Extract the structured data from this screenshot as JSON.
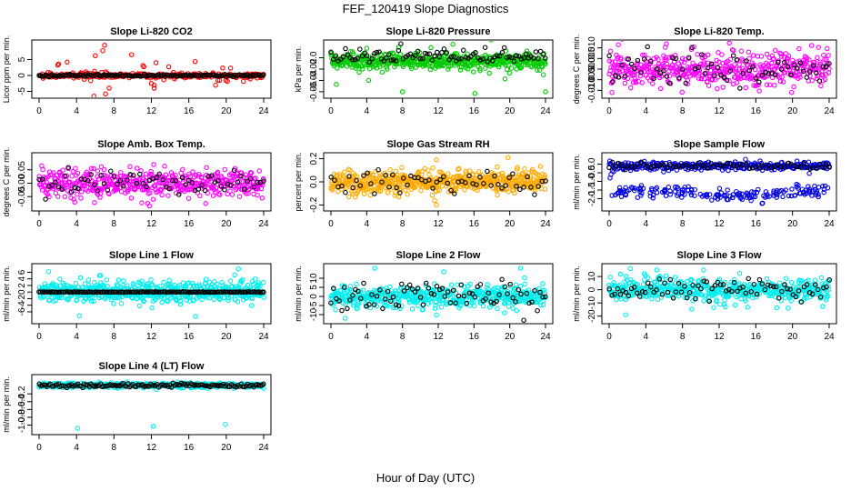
{
  "figure": {
    "title": "FEF_120419  Slope Diagnostics",
    "xlabel": "Hour of Day (UTC)"
  },
  "chart_data": [
    {
      "id": "p1",
      "type": "scatter",
      "title": "Slope Li-820 CO2",
      "ylabel": "Licor ppm per min.",
      "xlim": [
        0,
        24
      ],
      "ylim": [
        -6,
        10
      ],
      "xticks": [
        "0",
        "4",
        "8",
        "12",
        "16",
        "20",
        "24"
      ],
      "yticks": [
        {
          "v": -5,
          "label": "-5"
        },
        {
          "v": 0,
          "label": "0"
        },
        {
          "v": 5,
          "label": "5"
        }
      ],
      "color": "#ff0000",
      "gen": {
        "n": 280,
        "center": 0,
        "spread": 0.4,
        "tail": 0.12,
        "tailSpread": 3
      },
      "black": {
        "n": 140,
        "center": 0,
        "spread": 0.15
      },
      "outliers": [
        {
          "x": 7.1,
          "y": -5.8
        },
        {
          "x": 7.0,
          "y": 9.5
        },
        {
          "x": 6.8,
          "y": 7.8
        },
        {
          "x": 6.0,
          "y": 6.2
        },
        {
          "x": 12.3,
          "y": -4.0
        },
        {
          "x": 12.0,
          "y": -2.5
        },
        {
          "x": 12.5,
          "y": 4.0
        },
        {
          "x": 3.0,
          "y": 4.2
        }
      ]
    },
    {
      "id": "p2",
      "type": "scatter",
      "title": "Slope Li-820 Pressure",
      "ylabel": "kPa per min.",
      "xlim": [
        0,
        24
      ],
      "ylim": [
        -0.065,
        0.025
      ],
      "xticks": [
        "0",
        "4",
        "8",
        "12",
        "16",
        "20",
        "24"
      ],
      "yticks": [
        {
          "v": -0.06,
          "label": "-0.06"
        },
        {
          "v": -0.04,
          "label": "-0.04"
        },
        {
          "v": -0.02,
          "label": "-0.02"
        },
        {
          "v": 0,
          "label": "0.0"
        }
      ],
      "color": "#00cc00",
      "gen": {
        "n": 520,
        "center": -0.006,
        "spread": 0.007,
        "tail": 0.05,
        "tailSpread": 0.015
      },
      "black": {
        "n": 90,
        "center": 0.002,
        "spread": 0.006
      },
      "outliers": [
        {
          "x": 8.0,
          "y": -0.06
        },
        {
          "x": 16.1,
          "y": -0.063
        },
        {
          "x": 24.0,
          "y": -0.06
        },
        {
          "x": 0.6,
          "y": -0.047
        },
        {
          "x": 4.2,
          "y": -0.04
        }
      ]
    },
    {
      "id": "p3",
      "type": "scatter",
      "title": "Slope Li-820 Temp.",
      "ylabel": "degrees C per min.",
      "xlim": [
        0,
        24
      ],
      "ylim": [
        -0.012,
        0.012
      ],
      "xticks": [
        "0",
        "4",
        "8",
        "12",
        "16",
        "20",
        "24"
      ],
      "yticks": [
        {
          "v": -0.01,
          "label": "-0.010"
        },
        {
          "v": -0.005,
          "label": "-0.005"
        },
        {
          "v": 0,
          "label": "0.000"
        },
        {
          "v": 0.005,
          "label": "0.005"
        },
        {
          "v": 0.01,
          "label": "0.010"
        }
      ],
      "color": "#ff00ff",
      "gen": {
        "n": 480,
        "center": 0.0,
        "spread": 0.004,
        "tail": 0.05,
        "tailSpread": 0.004
      },
      "black": {
        "n": 70,
        "center": 0,
        "spread": 0.004
      },
      "outliers": [
        {
          "x": 1.0,
          "y": 0.0115
        },
        {
          "x": 0.3,
          "y": -0.011
        },
        {
          "x": 19.9,
          "y": -0.011
        }
      ]
    },
    {
      "id": "p4",
      "type": "scatter",
      "title": "Slope Amb. Box Temp.",
      "ylabel": "degrees C per min.",
      "xlim": [
        0,
        24
      ],
      "ylim": [
        -0.09,
        0.1
      ],
      "xticks": [
        "0",
        "4",
        "8",
        "12",
        "16",
        "20",
        "24"
      ],
      "yticks": [
        {
          "v": -0.05,
          "label": "-0.05"
        },
        {
          "v": 0,
          "label": "0.00"
        },
        {
          "v": 0.05,
          "label": "0.05"
        }
      ],
      "color": "#ff00ff",
      "gen": {
        "n": 480,
        "center": 0.0,
        "spread": 0.025,
        "tail": 0.05,
        "tailSpread": 0.03
      },
      "black": {
        "n": 70,
        "center": 0,
        "spread": 0.025
      },
      "outliers": [
        {
          "x": 11.8,
          "y": -0.085
        },
        {
          "x": 11.6,
          "y": -0.075
        }
      ]
    },
    {
      "id": "p5",
      "type": "scatter",
      "title": "Slope Gas Stream RH",
      "ylabel": "percent per min.",
      "xlim": [
        0,
        24
      ],
      "ylim": [
        -0.22,
        0.22
      ],
      "xticks": [
        "0",
        "4",
        "8",
        "12",
        "16",
        "20",
        "24"
      ],
      "yticks": [
        {
          "v": -0.2,
          "label": "-0.2"
        },
        {
          "v": 0,
          "label": "0.0"
        },
        {
          "v": 0.2,
          "label": "0.2"
        }
      ],
      "color": "#ffaa00",
      "gen": {
        "n": 540,
        "center": 0,
        "spread": 0.045,
        "tail": 0.04,
        "tailSpread": 0.06
      },
      "black": {
        "n": 60,
        "center": 0,
        "spread": 0.05
      },
      "outliers": [
        {
          "x": 7.6,
          "y": -0.13
        },
        {
          "x": 11.8,
          "y": -0.2
        },
        {
          "x": 11.6,
          "y": -0.16
        },
        {
          "x": 11.8,
          "y": 0.19
        },
        {
          "x": 19.8,
          "y": 0.21
        },
        {
          "x": 18.6,
          "y": 0.13
        },
        {
          "x": 2.0,
          "y": -0.13
        }
      ]
    },
    {
      "id": "p6",
      "type": "scatter",
      "title": "Slope Sample Flow",
      "ylabel": "ml/min per min.",
      "xlim": [
        0,
        24
      ],
      "ylim": [
        -2.5,
        0.45
      ],
      "xticks": [
        "0",
        "4",
        "8",
        "12",
        "16",
        "20",
        "24"
      ],
      "yticks": [
        {
          "v": -2.0,
          "label": "-2.0"
        },
        {
          "v": -1.5,
          "label": "-1.5"
        },
        {
          "v": -1.0,
          "label": "-1.0"
        },
        {
          "v": -0.5,
          "label": "-0.5"
        },
        {
          "v": 0,
          "label": "0.0"
        }
      ],
      "color": "#0000dd",
      "gen": {
        "n": 300,
        "center": -0.1,
        "spread": 0.12,
        "tail": 0,
        "tailSpread": 0
      },
      "lower": {
        "n": 180,
        "center": -1.7,
        "spread": 0.18
      },
      "black": {
        "n": 70,
        "center": -0.1,
        "spread": 0.1
      },
      "outliers": [
        {
          "x": 0.1,
          "y": -0.8
        },
        {
          "x": 0.2,
          "y": -0.6
        }
      ]
    },
    {
      "id": "p7",
      "type": "scatter",
      "title": "Slope Line 1 Flow",
      "ylabel": "ml/min per min.",
      "xlim": [
        0,
        24
      ],
      "ylim": [
        -8.5,
        7.5
      ],
      "xticks": [
        "0",
        "4",
        "8",
        "12",
        "16",
        "20",
        "24"
      ],
      "yticks": [
        {
          "v": -6,
          "label": "-6"
        },
        {
          "v": -4,
          "label": "-4"
        },
        {
          "v": -2,
          "label": "-2"
        },
        {
          "v": 0,
          "label": "0"
        },
        {
          "v": 2,
          "label": "2"
        },
        {
          "v": 4,
          "label": "4"
        },
        {
          "v": 6,
          "label": "6"
        }
      ],
      "color": "#00eeee",
      "gen": {
        "n": 560,
        "center": 0,
        "spread": 1.5,
        "tail": 0.06,
        "tailSpread": 2.5
      },
      "black": {
        "n": 140,
        "center": 0,
        "spread": 0.05
      },
      "outliers": [
        {
          "x": 4.3,
          "y": -7.2
        },
        {
          "x": 21.3,
          "y": 7.0
        },
        {
          "x": 1.0,
          "y": 6.2
        }
      ]
    },
    {
      "id": "p8",
      "type": "scatter",
      "title": "Slope Line 2 Flow",
      "ylabel": "ml/min per min.",
      "xlim": [
        0,
        24
      ],
      "ylim": [
        -13,
        16
      ],
      "xticks": [
        "0",
        "4",
        "8",
        "12",
        "16",
        "20",
        "24"
      ],
      "yticks": [
        {
          "v": -10,
          "label": "-10"
        },
        {
          "v": -5,
          "label": "-5"
        },
        {
          "v": 0,
          "label": "0"
        },
        {
          "v": 5,
          "label": "5"
        },
        {
          "v": 10,
          "label": "10"
        }
      ],
      "color": "#00eeee",
      "gen": {
        "n": 540,
        "center": 0,
        "spread": 3,
        "tail": 0.05,
        "tailSpread": 5
      },
      "black": {
        "n": 80,
        "center": 0,
        "spread": 4
      },
      "outliers": [
        {
          "x": 4.9,
          "y": 15.5
        },
        {
          "x": 21.2,
          "y": 15.5
        },
        {
          "x": 1.6,
          "y": -12.0
        }
      ]
    },
    {
      "id": "p9",
      "type": "scatter",
      "title": "Slope Line 3 Flow",
      "ylabel": "ml/min per min.",
      "xlim": [
        0,
        24
      ],
      "ylim": [
        -23,
        17
      ],
      "xticks": [
        "0",
        "4",
        "8",
        "12",
        "16",
        "20",
        "24"
      ],
      "yticks": [
        {
          "v": -20,
          "label": "-20"
        },
        {
          "v": -10,
          "label": "-10"
        },
        {
          "v": 0,
          "label": "0"
        },
        {
          "v": 10,
          "label": "10"
        }
      ],
      "color": "#00eeee",
      "gen": {
        "n": 540,
        "center": 0,
        "spread": 4,
        "tail": 0.06,
        "tailSpread": 7
      },
      "black": {
        "n": 80,
        "center": 0,
        "spread": 4
      },
      "outliers": [
        {
          "x": 2.3,
          "y": 16.0
        },
        {
          "x": 1.8,
          "y": -19.0
        },
        {
          "x": 5.2,
          "y": 15.0
        }
      ]
    },
    {
      "id": "p10",
      "type": "scatter",
      "title": "Slope Line 4 (LT) Flow",
      "ylabel": "ml/min per min.",
      "xlim": [
        0,
        24
      ],
      "ylim": [
        -1.15,
        0.2
      ],
      "xticks": [
        "0",
        "4",
        "8",
        "12",
        "16",
        "20",
        "24"
      ],
      "yticks": [
        {
          "v": -1.0,
          "label": "-1.0"
        },
        {
          "v": -0.8,
          "label": "-0.8"
        },
        {
          "v": -0.6,
          "label": "-0.6"
        },
        {
          "v": -0.4,
          "label": "-0.4"
        },
        {
          "v": -0.2,
          "label": "-0.2"
        }
      ],
      "color": "#00eeee",
      "gen": {
        "n": 540,
        "center": 0.02,
        "spread": 0.03,
        "tail": 0,
        "tailSpread": 0
      },
      "black": {
        "n": 140,
        "center": 0.02,
        "spread": 0.025
      },
      "outliers": [
        {
          "x": 4.1,
          "y": -1.08
        },
        {
          "x": 12.2,
          "y": -1.03
        },
        {
          "x": 19.9,
          "y": -0.98
        }
      ]
    }
  ]
}
